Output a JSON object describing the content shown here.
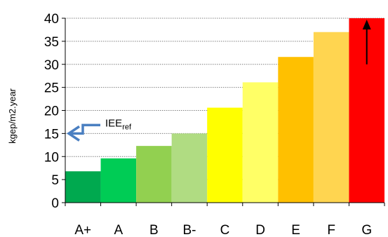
{
  "chart_data": {
    "type": "bar",
    "title": "",
    "xlabel": "",
    "ylabel": "kgep/m2.year",
    "categories": [
      "A+",
      "A",
      "B",
      "B-",
      "C",
      "D",
      "E",
      "F",
      "G"
    ],
    "values": [
      6.8,
      9.6,
      12.3,
      15.0,
      20.6,
      26.1,
      31.6,
      37.0,
      40.0
    ],
    "colors": [
      "#00a94f",
      "#00cc55",
      "#92d050",
      "#b0dc82",
      "#ffff00",
      "#ffff66",
      "#ffc000",
      "#ffd550",
      "#ff0000"
    ],
    "ylim": [
      0,
      40
    ],
    "yticks": [
      0,
      5,
      10,
      15,
      20,
      25,
      30,
      35,
      40
    ],
    "grid": true,
    "annotations": {
      "reference": {
        "label_main": "IEE",
        "label_sub": "ref",
        "y": 15,
        "color": "#4a7fc1"
      },
      "arrow_up": {
        "category": "G",
        "from_y": 30,
        "to_y": 40,
        "color": "#000000"
      }
    }
  }
}
